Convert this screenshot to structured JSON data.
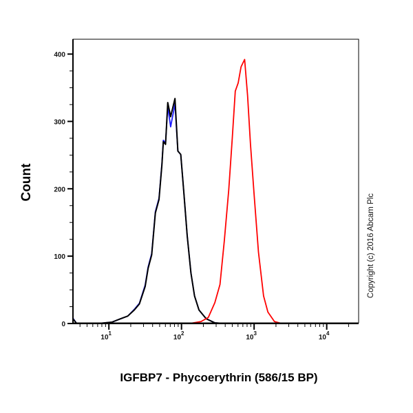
{
  "chart_data": {
    "type": "line",
    "title": "",
    "xlabel": "IGFBP7 - Phycoerythrin (586/15 BP)",
    "ylabel": "Count",
    "xscale": "log",
    "xlim": [
      3.2,
      27500
    ],
    "ylim": [
      0,
      422
    ],
    "grid": false,
    "legend": "none",
    "x_ticks": [
      {
        "value": 10,
        "base": "10",
        "exp": "1"
      },
      {
        "value": 100,
        "base": "10",
        "exp": "2"
      },
      {
        "value": 1000,
        "base": "10",
        "exp": "3"
      },
      {
        "value": 10000,
        "base": "10",
        "exp": "4"
      }
    ],
    "y_ticks": [
      {
        "value": 0,
        "label": "0"
      },
      {
        "value": 100,
        "label": "100"
      },
      {
        "value": 200,
        "label": "200"
      },
      {
        "value": 300,
        "label": "300"
      },
      {
        "value": 400,
        "label": "400"
      }
    ],
    "annotation": "Copyright (c) 2016 Abcam Plc",
    "series": [
      {
        "color": "#1a1aff",
        "x": [
          3.2,
          3.6,
          7.1,
          11,
          14.5,
          18.2,
          22.4,
          26.3,
          31.6,
          34.7,
          38.9,
          43.6,
          49,
          53.7,
          56.2,
          60.3,
          64.6,
          70.8,
          81.3,
          89.1,
          97.7,
          107,
          120,
          135,
          151,
          174,
          219,
          288,
          389,
          27500
        ],
        "y": [
          8,
          0,
          0,
          2,
          7,
          11,
          21,
          30,
          57,
          84,
          104,
          166,
          186,
          237,
          272,
          268,
          322,
          292,
          326,
          256,
          251,
          198,
          130,
          75,
          41,
          20,
          7,
          1,
          0,
          0
        ]
      },
      {
        "color": "#000000",
        "x": [
          3.2,
          3.6,
          7.1,
          11,
          14.5,
          18.2,
          22.4,
          26.3,
          31.6,
          34.7,
          38.9,
          43.6,
          49,
          53.7,
          56.2,
          60.3,
          64.6,
          70.8,
          81.3,
          89.1,
          97.7,
          107,
          120,
          135,
          151,
          174,
          219,
          288,
          389,
          27500
        ],
        "y": [
          7,
          0,
          0,
          2,
          7,
          11,
          20,
          29,
          55,
          82,
          102,
          164,
          184,
          235,
          270,
          266,
          328,
          307,
          334,
          256,
          251,
          198,
          130,
          75,
          41,
          20,
          7,
          1,
          0,
          0
        ]
      },
      {
        "color": "#ff0000",
        "x": [
          3.2,
          129,
          186,
          234,
          288,
          339,
          389,
          447,
          501,
          550,
          603,
          661,
          741,
          813,
          891,
          1000,
          1148,
          1349,
          1549,
          1905,
          2399,
          27500
        ],
        "y": [
          0,
          0,
          3,
          9,
          31,
          58,
          123,
          198,
          276,
          345,
          357,
          381,
          392,
          338,
          266,
          191,
          106,
          41,
          17,
          3,
          0,
          0
        ]
      }
    ]
  }
}
